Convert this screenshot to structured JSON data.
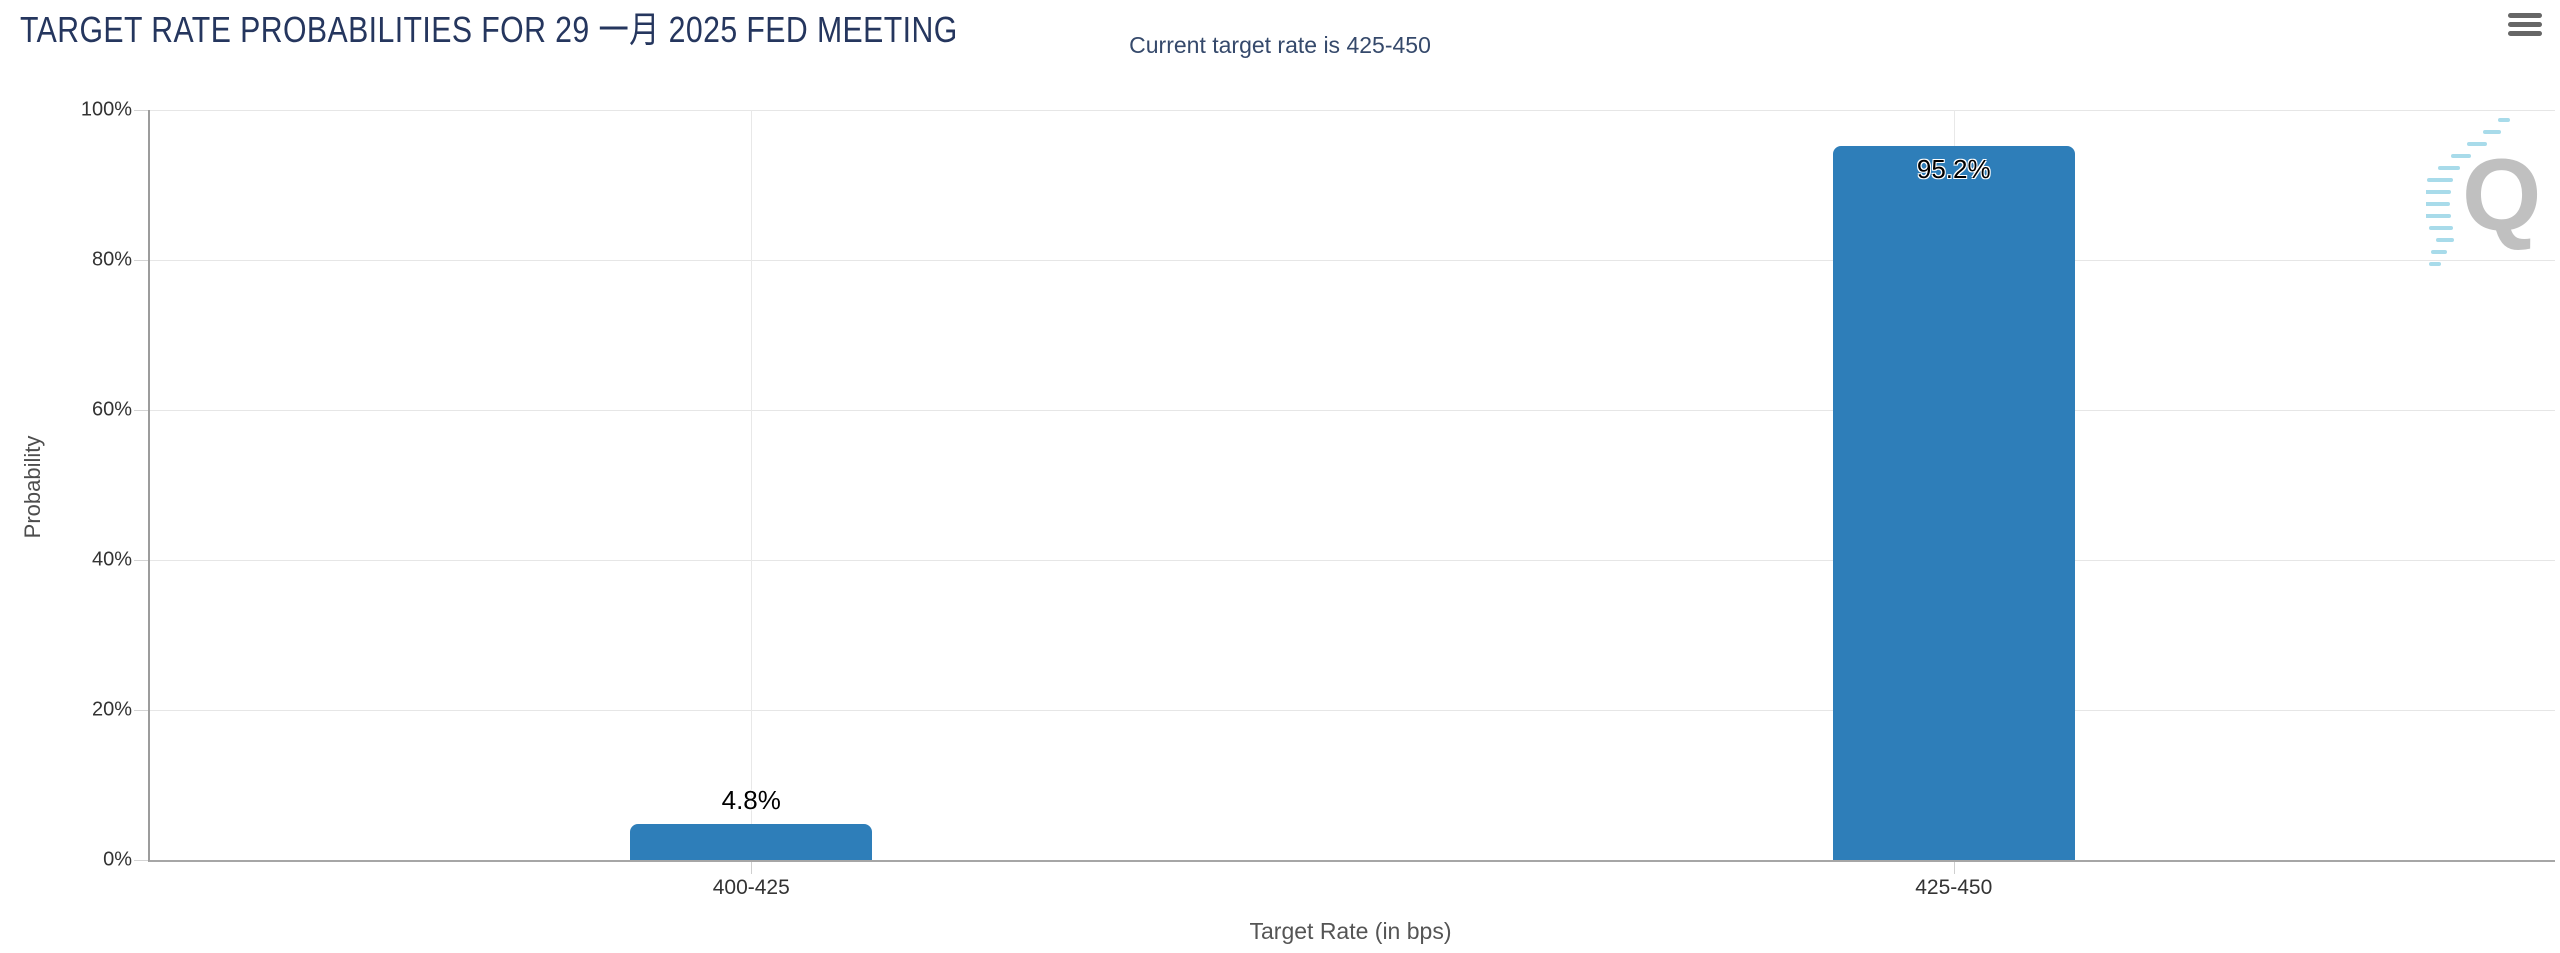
{
  "chart_data": {
    "type": "bar",
    "title": "TARGET RATE PROBABILITIES FOR 29 一月 2025 FED MEETING",
    "subtitle": "Current target rate is 425-450",
    "xlabel": "Target Rate (in bps)",
    "ylabel": "Probability",
    "categories": [
      "400-425",
      "425-450"
    ],
    "series": [
      {
        "name": "Probability",
        "values": [
          4.8,
          95.2
        ],
        "labels": [
          "4.8%",
          "95.2%"
        ]
      }
    ],
    "ylim": [
      0,
      100
    ],
    "yticks": [
      "0%",
      "20%",
      "40%",
      "60%",
      "80%",
      "100%"
    ],
    "grid": true,
    "legend_position": "none",
    "bar_color": "#2e7eb9"
  },
  "toolbar": {
    "menu_icon": "hamburger-icon"
  },
  "watermark": {
    "letter": "Q"
  },
  "colors": {
    "title": "#25365e",
    "subtitle": "#35496b",
    "bar": "#2e7eb9",
    "axis_text": "#333333",
    "axis_title": "#555555",
    "gridline": "#e6e6e6",
    "axis_line": "#9c9c9c",
    "menu_icon": "#666666",
    "watermark_q": "#c0c0c0",
    "watermark_dash": "#a8dbea"
  }
}
